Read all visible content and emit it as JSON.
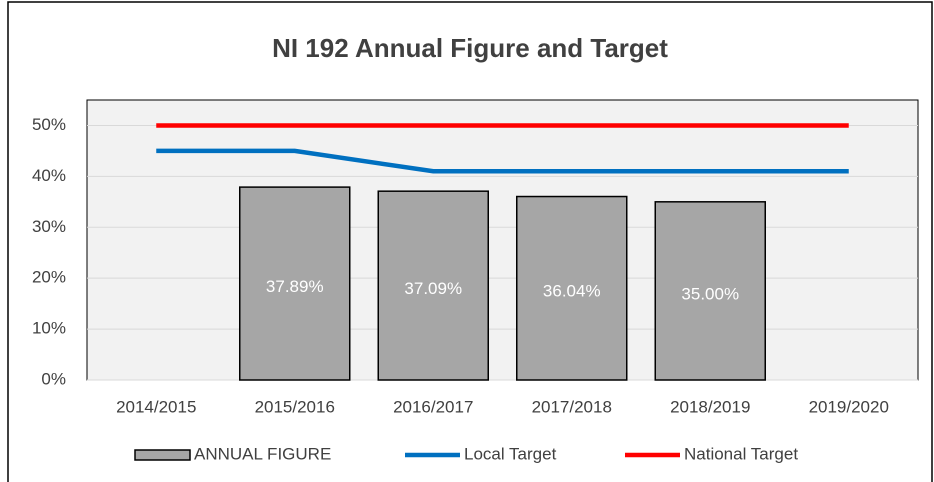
{
  "chart_data": {
    "type": "bar",
    "title": "NI 192 Annual Figure and Target",
    "categories": [
      "2014/2015",
      "2015/2016",
      "2016/2017",
      "2017/2018",
      "2018/2019",
      "2019/2020"
    ],
    "series": [
      {
        "name": "ANNUAL FIGURE",
        "type": "bar",
        "color": "#a6a6a6",
        "values": [
          null,
          37.89,
          37.09,
          36.04,
          35.0,
          null
        ],
        "value_labels": [
          null,
          "37.89%",
          "37.09%",
          "36.04%",
          "35.00%",
          null
        ]
      },
      {
        "name": "Local Target",
        "type": "line",
        "color": "#0070c0",
        "values": [
          45,
          45,
          41,
          41,
          41,
          41
        ]
      },
      {
        "name": "National Target",
        "type": "line",
        "color": "#ff0000",
        "values": [
          50,
          50,
          50,
          50,
          50,
          50
        ]
      }
    ],
    "ylim": [
      0,
      55
    ],
    "yticks": [
      {
        "value": 0,
        "label": "0%"
      },
      {
        "value": 10,
        "label": "10%"
      },
      {
        "value": 20,
        "label": "20%"
      },
      {
        "value": 30,
        "label": "30%"
      },
      {
        "value": 40,
        "label": "40%"
      },
      {
        "value": 50,
        "label": "50%"
      }
    ],
    "grid": true,
    "legend": "bottom"
  }
}
